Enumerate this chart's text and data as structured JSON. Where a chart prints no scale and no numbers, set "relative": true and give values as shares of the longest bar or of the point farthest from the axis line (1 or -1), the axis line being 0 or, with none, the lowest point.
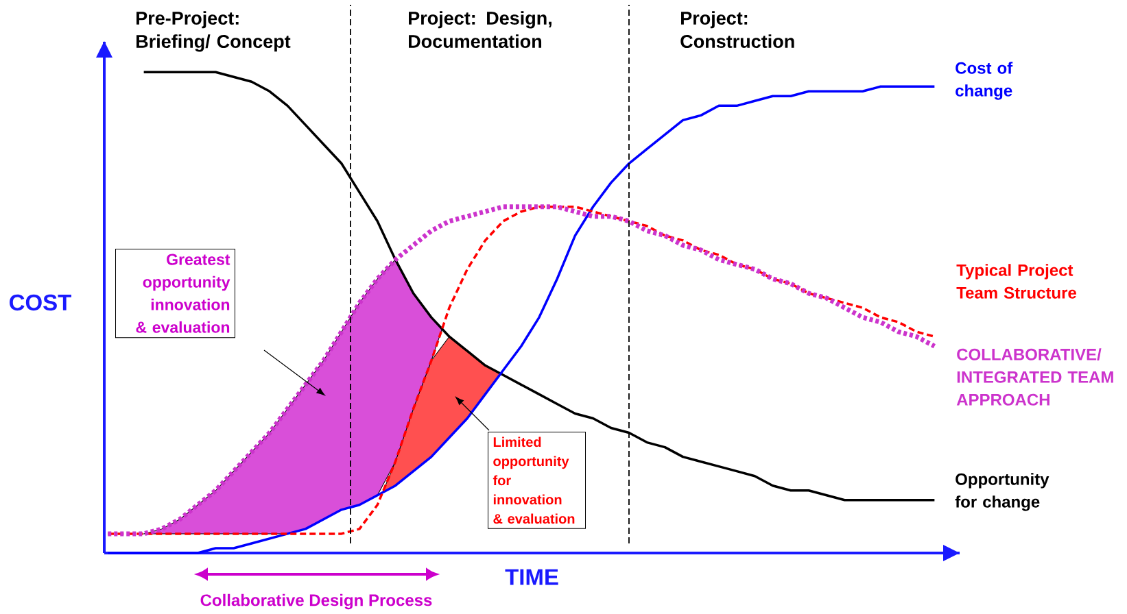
{
  "chart_data": {
    "type": "line",
    "relative": true,
    "xlabel": "TIME",
    "ylabel": "COST",
    "categories": [
      null,
      null,
      null,
      null,
      null,
      null,
      null,
      null,
      null,
      null,
      null,
      null,
      null,
      null,
      null,
      null,
      null,
      null,
      null,
      null,
      null,
      null,
      null,
      null,
      null,
      null,
      null,
      null,
      null,
      null,
      null,
      null,
      null,
      null,
      null,
      null,
      null,
      null,
      null,
      null,
      null,
      null,
      null,
      null,
      null,
      null,
      null
    ],
    "series": [
      {
        "name": "Opportunity for change",
        "color": "#000000",
        "values": [
          null,
          null,
          1.0,
          1.0,
          1.0,
          1.0,
          1.0,
          0.99,
          0.98,
          0.96,
          0.93,
          0.89,
          0.85,
          0.81,
          0.75,
          0.69,
          0.61,
          0.54,
          0.49,
          0.45,
          0.42,
          0.39,
          0.37,
          0.35,
          0.33,
          0.31,
          0.29,
          0.28,
          0.26,
          0.25,
          0.23,
          0.22,
          0.2,
          0.19,
          0.18,
          0.17,
          0.16,
          0.14,
          0.13,
          0.13,
          0.12,
          0.11,
          0.11,
          0.11,
          0.11,
          0.11,
          0.11
        ]
      },
      {
        "name": "Cost of change",
        "color": "#0000ff",
        "values": [
          0,
          0,
          0,
          0,
          0,
          0,
          0.01,
          0.01,
          0.02,
          0.03,
          0.04,
          0.05,
          0.07,
          0.09,
          0.1,
          0.12,
          0.14,
          0.17,
          0.2,
          0.24,
          0.28,
          0.33,
          0.38,
          0.43,
          0.49,
          0.57,
          0.66,
          0.72,
          0.77,
          0.81,
          0.84,
          0.87,
          0.9,
          0.91,
          0.93,
          0.93,
          0.94,
          0.95,
          0.95,
          0.96,
          0.96,
          0.96,
          0.96,
          0.97,
          0.97,
          0.97,
          0.97
        ]
      },
      {
        "name": "Typical Project Team Structure",
        "color": "#ff0000",
        "line_style": "dashed",
        "values": [
          0.04,
          0.04,
          0.04,
          0.04,
          0.04,
          0.04,
          0.04,
          0.04,
          0.04,
          0.04,
          0.04,
          0.04,
          0.04,
          0.04,
          0.05,
          0.1,
          0.19,
          0.3,
          0.4,
          0.51,
          0.59,
          0.65,
          0.69,
          0.71,
          0.72,
          0.72,
          0.72,
          0.71,
          0.7,
          0.69,
          0.68,
          0.66,
          0.65,
          0.63,
          0.62,
          0.6,
          0.59,
          0.57,
          0.56,
          0.54,
          0.53,
          0.52,
          0.51,
          0.49,
          0.48,
          0.46,
          0.45
        ]
      },
      {
        "name": "COLLABORATIVE/ INTEGRATED TEAM APPROACH",
        "color": "#cc33cc",
        "line_style": "dotted",
        "values": [
          0.04,
          0.04,
          0.04,
          0.05,
          0.07,
          0.1,
          0.13,
          0.17,
          0.21,
          0.25,
          0.3,
          0.35,
          0.4,
          0.46,
          0.52,
          0.57,
          0.61,
          0.64,
          0.67,
          0.69,
          0.7,
          0.71,
          0.72,
          0.72,
          0.72,
          0.72,
          0.71,
          0.7,
          0.7,
          0.69,
          0.67,
          0.66,
          0.64,
          0.63,
          0.61,
          0.6,
          0.59,
          0.57,
          0.56,
          0.54,
          0.53,
          0.51,
          0.49,
          0.48,
          0.46,
          0.45,
          0.43
        ]
      }
    ],
    "annotations": [
      "Pre-Project: Briefing/ Concept",
      "Project: Design, Documentation",
      "Project: Construction",
      "Greatest opportunity innovation & evaluation",
      "Limited opportunity for innovation & evaluation",
      "Collaborative Design Process"
    ]
  }
}
